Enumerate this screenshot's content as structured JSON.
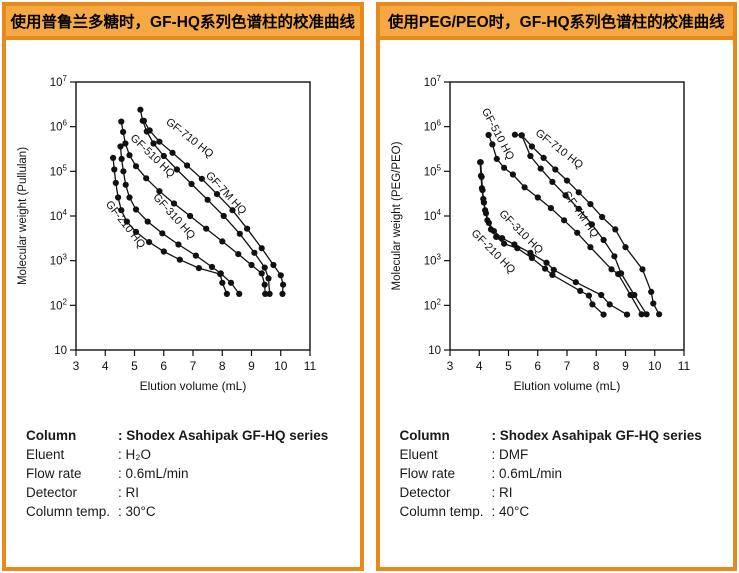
{
  "colors": {
    "panel_border": "#E8891B",
    "header_fill": "#F6A844",
    "curve": "#111111"
  },
  "panels": [
    {
      "title": "使用普鲁兰多糖时，GF-HQ系列色谱柱的校准曲线",
      "info": {
        "rows": [
          {
            "label": "Column",
            "value": ": Shodex Asahipak GF-HQ series"
          },
          {
            "label": "Eluent",
            "value": ": H₂O"
          },
          {
            "label": "Flow rate",
            "value": ": 0.6mL/min"
          },
          {
            "label": "Detector",
            "value": ": RI"
          },
          {
            "label": "Column temp.",
            "value": ": 30°C"
          }
        ]
      }
    },
    {
      "title": "使用PEG/PEO时，GF-HQ系列色谱柱的校准曲线",
      "info": {
        "rows": [
          {
            "label": "Column",
            "value": ": Shodex Asahipak GF-HQ series"
          },
          {
            "label": "Eluent",
            "value": ": DMF"
          },
          {
            "label": "Flow rate",
            "value": ": 0.6mL/min"
          },
          {
            "label": "Detector",
            "value": ": RI"
          },
          {
            "label": "Column temp.",
            "value": ": 40°C"
          }
        ]
      }
    }
  ],
  "chart_data": [
    {
      "type": "line",
      "xlabel": "Elution volume (mL)",
      "ylabel": "Molecular weight (Pullulan)",
      "xlim": [
        3,
        11
      ],
      "x_ticks": [
        3,
        4,
        5,
        6,
        7,
        8,
        9,
        10,
        11
      ],
      "ylog": true,
      "ylim": [
        10,
        10000000
      ],
      "y_ticks": [
        10,
        100,
        1000,
        10000,
        100000,
        1000000,
        10000000
      ],
      "grid": false,
      "legend": "labels-on-curves",
      "series": [
        {
          "name": "GF-210 HQ",
          "label": {
            "x": 4.0,
            "y": 18500,
            "rot": 52
          },
          "points": [
            [
              4.27,
              200000
            ],
            [
              4.31,
              110000
            ],
            [
              4.36,
              55000
            ],
            [
              4.44,
              26000
            ],
            [
              4.55,
              13500
            ],
            [
              4.74,
              7500
            ],
            [
              5.05,
              4400
            ],
            [
              5.5,
              2600
            ],
            [
              6.0,
              1600
            ],
            [
              6.55,
              1050
            ],
            [
              7.2,
              680
            ],
            [
              7.93,
              500
            ],
            [
              8.0,
              320
            ],
            [
              8.16,
              180
            ]
          ]
        },
        {
          "name": "GF-310 HQ",
          "label": {
            "x": 5.62,
            "y": 26000,
            "rot": 48
          },
          "points": [
            [
              4.52,
              360000
            ],
            [
              4.56,
              190000
            ],
            [
              4.62,
              100000
            ],
            [
              4.7,
              50000
            ],
            [
              4.83,
              26000
            ],
            [
              5.05,
              14000
            ],
            [
              5.45,
              7500
            ],
            [
              5.95,
              4100
            ],
            [
              6.5,
              2300
            ],
            [
              7.1,
              1300
            ],
            [
              7.65,
              720
            ],
            [
              7.95,
              520
            ],
            [
              8.3,
              320
            ],
            [
              8.58,
              180
            ]
          ]
        },
        {
          "name": "GF-510 HQ",
          "label": {
            "x": 4.84,
            "y": 540000,
            "rot": 44
          },
          "points": [
            [
              4.55,
              1300000
            ],
            [
              4.61,
              760000
            ],
            [
              4.69,
              420000
            ],
            [
              4.83,
              230000
            ],
            [
              5.05,
              130000
            ],
            [
              5.4,
              70000
            ],
            [
              5.85,
              36000
            ],
            [
              6.35,
              19000
            ],
            [
              6.9,
              10000
            ],
            [
              7.45,
              5200
            ],
            [
              8.0,
              2700
            ],
            [
              8.55,
              1400
            ],
            [
              9.0,
              800
            ],
            [
              9.35,
              520
            ],
            [
              9.45,
              290
            ],
            [
              9.47,
              180
            ]
          ]
        },
        {
          "name": "GF-710 HQ",
          "label": {
            "x": 6.05,
            "y": 1200000,
            "rot": 38
          },
          "points": [
            [
              5.2,
              2400000
            ],
            [
              5.28,
              1350000
            ],
            [
              5.42,
              780000
            ],
            [
              5.65,
              420000
            ],
            [
              6.0,
              220000
            ],
            [
              6.45,
              110000
            ],
            [
              6.95,
              52000
            ],
            [
              7.5,
              23000
            ],
            [
              8.05,
              10000
            ],
            [
              8.6,
              4000
            ],
            [
              9.1,
              1500
            ],
            [
              9.45,
              700
            ],
            [
              9.58,
              400
            ],
            [
              9.62,
              180
            ]
          ]
        },
        {
          "name": "GF-7M HQ",
          "label": {
            "x": 7.42,
            "y": 80000,
            "rot": 47
          },
          "points": [
            [
              5.32,
              1350000
            ],
            [
              5.52,
              820000
            ],
            [
              5.85,
              460000
            ],
            [
              6.3,
              260000
            ],
            [
              6.8,
              135000
            ],
            [
              7.3,
              68000
            ],
            [
              7.82,
              31000
            ],
            [
              8.35,
              13500
            ],
            [
              8.85,
              5200
            ],
            [
              9.35,
              1900
            ],
            [
              9.75,
              800
            ],
            [
              10.0,
              470
            ],
            [
              10.08,
              290
            ],
            [
              10.06,
              180
            ]
          ]
        }
      ]
    },
    {
      "type": "line",
      "xlabel": "Elution volume (mL)",
      "ylabel": "Molecular weight (PEG/PEO)",
      "xlim": [
        3,
        11
      ],
      "x_ticks": [
        3,
        4,
        5,
        6,
        7,
        8,
        9,
        10,
        11
      ],
      "ylog": true,
      "ylim": [
        10,
        10000000
      ],
      "y_ticks": [
        10,
        100,
        1000,
        10000,
        100000,
        1000000,
        10000000
      ],
      "grid": false,
      "legend": "labels-on-curves",
      "series": [
        {
          "name": "GF-210 HQ",
          "label": {
            "x": 3.71,
            "y": 4000,
            "rot": 45
          },
          "points": [
            [
              4.03,
              160000
            ],
            [
              4.06,
              80000
            ],
            [
              4.09,
              42000
            ],
            [
              4.14,
              24000
            ],
            [
              4.2,
              13500
            ],
            [
              4.28,
              8000
            ],
            [
              4.4,
              5000
            ],
            [
              4.58,
              3400
            ],
            [
              4.85,
              2400
            ],
            [
              5.3,
              1900
            ],
            [
              5.8,
              1150
            ],
            [
              6.25,
              660
            ],
            [
              6.5,
              480
            ],
            [
              7.45,
              210
            ],
            [
              7.75,
              165
            ],
            [
              7.87,
              105
            ],
            [
              8.25,
              62
            ]
          ]
        },
        {
          "name": "GF-310 HQ",
          "label": {
            "x": 4.66,
            "y": 11000,
            "rot": 45
          },
          "points": [
            [
              4.05,
              160000
            ],
            [
              4.08,
              75000
            ],
            [
              4.11,
              38000
            ],
            [
              4.16,
              20000
            ],
            [
              4.23,
              11500
            ],
            [
              4.33,
              7000
            ],
            [
              4.5,
              4600
            ],
            [
              4.78,
              3200
            ],
            [
              5.2,
              2300
            ],
            [
              5.75,
              1500
            ],
            [
              6.3,
              900
            ],
            [
              6.55,
              620
            ],
            [
              7.3,
              330
            ],
            [
              8.17,
              170
            ],
            [
              8.46,
              105
            ],
            [
              9.05,
              62
            ]
          ]
        },
        {
          "name": "GF-510 HQ",
          "label": {
            "x": 4.08,
            "y": 2300000,
            "rot": 62
          },
          "points": [
            [
              4.32,
              650000
            ],
            [
              4.45,
              400000
            ],
            [
              4.6,
              190000
            ],
            [
              4.85,
              120000
            ],
            [
              5.15,
              85000
            ],
            [
              5.55,
              44000
            ],
            [
              6.0,
              26000
            ],
            [
              6.45,
              15000
            ],
            [
              6.9,
              8000
            ],
            [
              7.35,
              4200
            ],
            [
              7.8,
              2000
            ],
            [
              8.52,
              640
            ],
            [
              8.75,
              500
            ],
            [
              9.17,
              170
            ],
            [
              9.55,
              63
            ]
          ]
        },
        {
          "name": "GF-710 HQ",
          "label": {
            "x": 5.9,
            "y": 680000,
            "rot": 38
          },
          "points": [
            [
              5.22,
              660000
            ],
            [
              5.45,
              640000
            ],
            [
              5.75,
              220000
            ],
            [
              6.1,
              115000
            ],
            [
              6.5,
              58000
            ],
            [
              6.95,
              29000
            ],
            [
              7.4,
              14500
            ],
            [
              7.85,
              6500
            ],
            [
              8.25,
              2900
            ],
            [
              8.62,
              1250
            ],
            [
              8.85,
              520
            ],
            [
              9.3,
              170
            ],
            [
              9.72,
              63
            ]
          ]
        },
        {
          "name": "GF-7M HQ",
          "label": {
            "x": 6.85,
            "y": 31000,
            "rot": 55
          },
          "points": [
            [
              5.45,
              640000
            ],
            [
              5.8,
              360000
            ],
            [
              6.2,
              200000
            ],
            [
              6.6,
              110000
            ],
            [
              7.0,
              62000
            ],
            [
              7.4,
              34000
            ],
            [
              7.8,
              18500
            ],
            [
              8.2,
              9500
            ],
            [
              8.65,
              5000
            ],
            [
              9.0,
              2000
            ],
            [
              9.58,
              640
            ],
            [
              9.88,
              200
            ],
            [
              9.95,
              110
            ],
            [
              10.15,
              63
            ]
          ]
        }
      ]
    }
  ]
}
